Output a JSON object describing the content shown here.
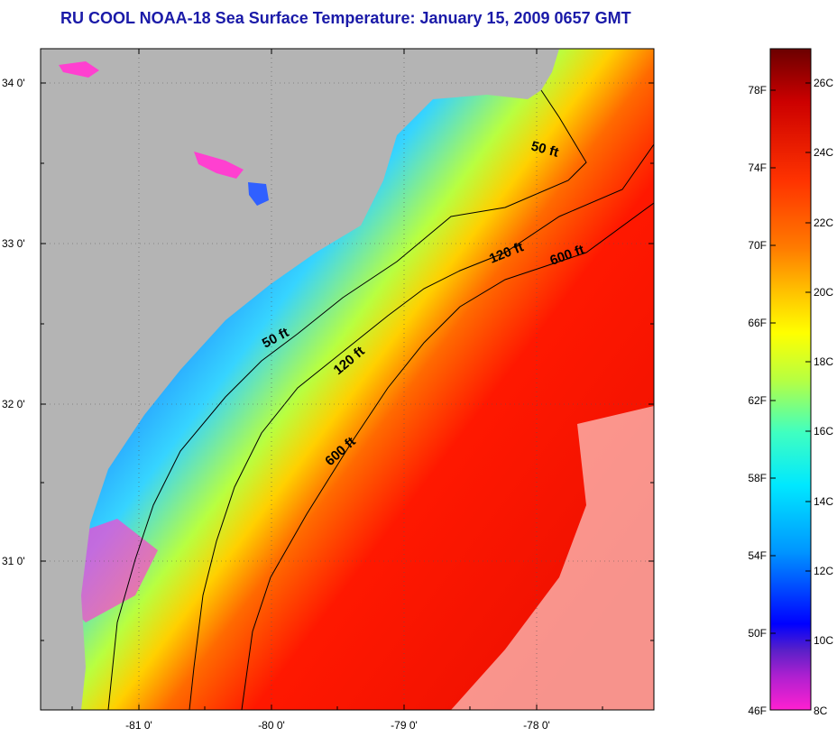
{
  "title": "RU COOL  NOAA-18  Sea Surface Temperature:  January 15, 2009 0657 GMT",
  "lat_ticks": [
    "34 0'",
    "33 0'",
    "32 0'",
    "31 0'"
  ],
  "lon_ticks": [
    "-81 0'",
    "-80 0'",
    "-79 0'",
    "-78 0'"
  ],
  "contour_labels": [
    "50 ft",
    "120 ft",
    "600 ft",
    "50 ft",
    "120 ft",
    "600 ft"
  ],
  "colorbar": {
    "fahrenheit": [
      "78F",
      "74F",
      "70F",
      "66F",
      "62F",
      "58F",
      "54F",
      "50F",
      "46F"
    ],
    "celsius": [
      "26C",
      "24C",
      "22C",
      "20C",
      "18C",
      "16C",
      "14C",
      "12C",
      "10C",
      "8C"
    ]
  },
  "colors": {
    "land": "#b4b4b4",
    "title": "#1a1aa8"
  }
}
